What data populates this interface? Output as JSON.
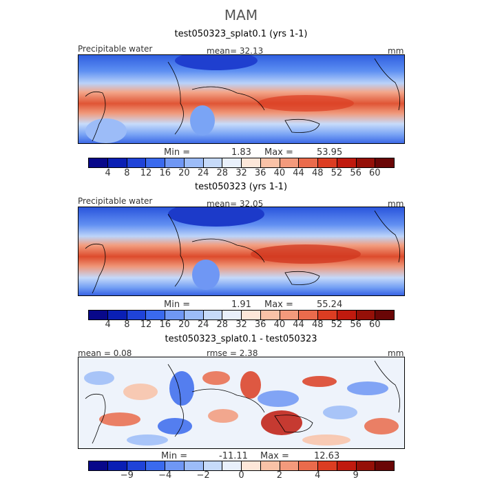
{
  "title": "MAM",
  "panels": [
    {
      "title": "test050323_splat0.1 (yrs 1-1)",
      "left_label": "Precipitable water",
      "center_label": "mean=   32.13",
      "right_label": "mm",
      "min_label": "Min =",
      "min_value": "1.83",
      "max_label": "Max =",
      "max_value": "53.95",
      "ticks": [
        "4",
        "8",
        "12",
        "16",
        "20",
        "24",
        "28",
        "32",
        "36",
        "40",
        "44",
        "48",
        "52",
        "56",
        "60"
      ]
    },
    {
      "title": "test050323 (yrs 1-1)",
      "left_label": "Precipitable water",
      "center_label": "mean=   32.05",
      "right_label": "mm",
      "min_label": "Min =",
      "min_value": "1.91",
      "max_label": "Max =",
      "max_value": "55.24",
      "ticks": [
        "4",
        "8",
        "12",
        "16",
        "20",
        "24",
        "28",
        "32",
        "36",
        "40",
        "44",
        "48",
        "52",
        "56",
        "60"
      ]
    },
    {
      "title": "test050323_splat0.1 - test050323",
      "left_label": "mean =   0.08",
      "center_label": "rmse =   2.38",
      "right_label": "mm",
      "min_label": "Min =",
      "min_value": "-11.11",
      "max_label": "Max =",
      "max_value": "12.63",
      "ticks": [
        "-9",
        "-4",
        "-2",
        "0",
        "2",
        "4",
        "9"
      ]
    }
  ],
  "colorbar_colors": [
    "#08088a",
    "#0a1fb4",
    "#1f43d8",
    "#3a6aee",
    "#6f97f4",
    "#9cbcf8",
    "#c6daf9",
    "#e9f0fb",
    "#fde7d9",
    "#f9c2a7",
    "#f39a7c",
    "#ea6b4c",
    "#dc3d22",
    "#c01a0e",
    "#951008",
    "#6a0606"
  ],
  "chart_data": [
    {
      "type": "heatmap",
      "title": "test050323_splat0.1 (yrs 1-1)",
      "variable": "Precipitable water",
      "units": "mm",
      "mean": 32.13,
      "min": 1.83,
      "max": 53.95,
      "levels": [
        4,
        8,
        12,
        16,
        20,
        24,
        28,
        32,
        36,
        40,
        44,
        48,
        52,
        56,
        60
      ]
    },
    {
      "type": "heatmap",
      "title": "test050323 (yrs 1-1)",
      "variable": "Precipitable water",
      "units": "mm",
      "mean": 32.05,
      "min": 1.91,
      "max": 55.24,
      "levels": [
        4,
        8,
        12,
        16,
        20,
        24,
        28,
        32,
        36,
        40,
        44,
        48,
        52,
        56,
        60
      ]
    },
    {
      "type": "heatmap",
      "title": "test050323_splat0.1 - test050323",
      "units": "mm",
      "mean": 0.08,
      "rmse": 2.38,
      "min": -11.11,
      "max": 12.63,
      "levels": [
        -9,
        -4,
        -2,
        0,
        2,
        4,
        9
      ]
    }
  ]
}
